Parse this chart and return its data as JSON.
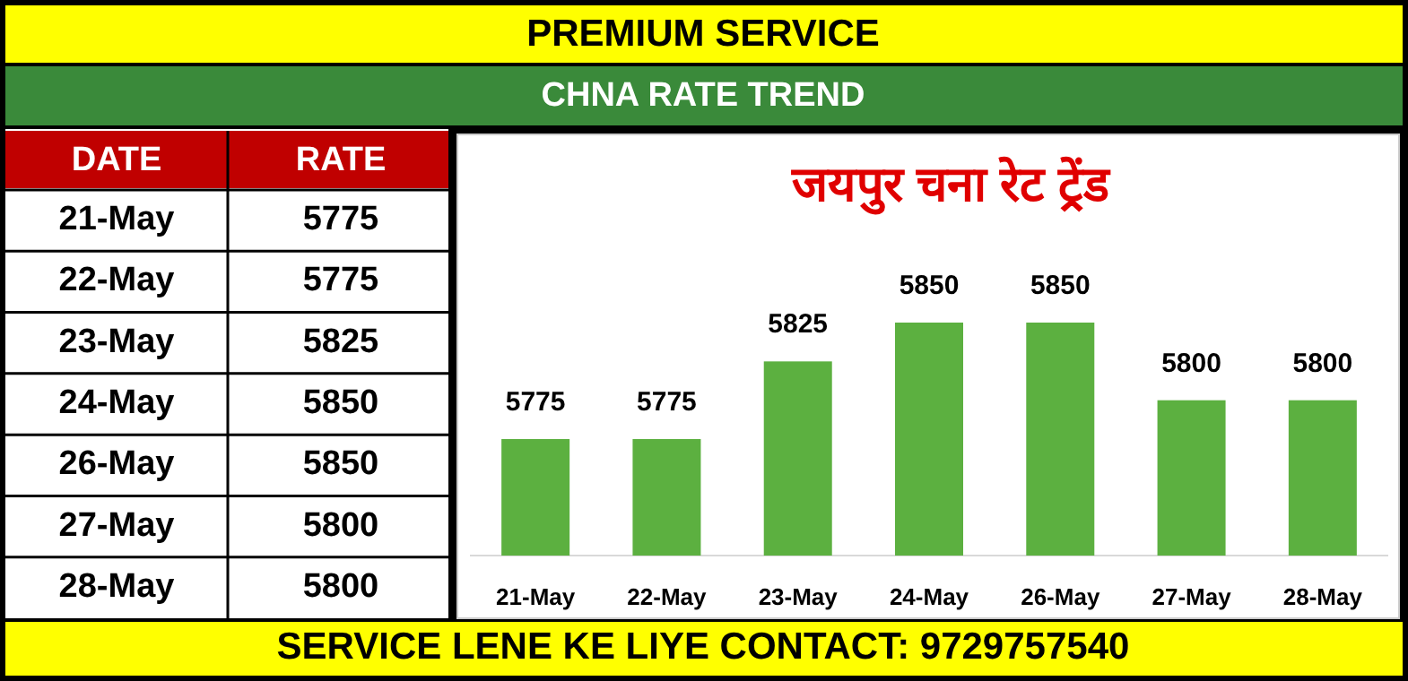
{
  "chart_data": [
    {
      "type": "other",
      "categories": [
        "21-May",
        "22-May",
        "23-May",
        "24-May",
        "26-May",
        "27-May",
        "28-May"
      ],
      "values": [
        5775,
        5775,
        5825,
        5850,
        5850,
        5800,
        5800
      ],
      "data_labels": true,
      "annotations": [
        "DATE",
        "RATE"
      ]
    },
    {
      "type": "bar",
      "title": "जयपुर चना रेट ट्रेंड",
      "subtitle": "CHNA RATE TREND",
      "categories": [
        "21-May",
        "22-May",
        "23-May",
        "24-May",
        "26-May",
        "27-May",
        "28-May"
      ],
      "values": [
        5775,
        5775,
        5825,
        5850,
        5850,
        5800,
        5800
      ],
      "color": "#5cb040",
      "ylim": [
        5700,
        5850
      ],
      "data_labels": true,
      "annotations": [
        "PREMIUM SERVICE",
        "SERVICE LENE KE LIYE CONTACT: 9729757540"
      ]
    }
  ]
}
